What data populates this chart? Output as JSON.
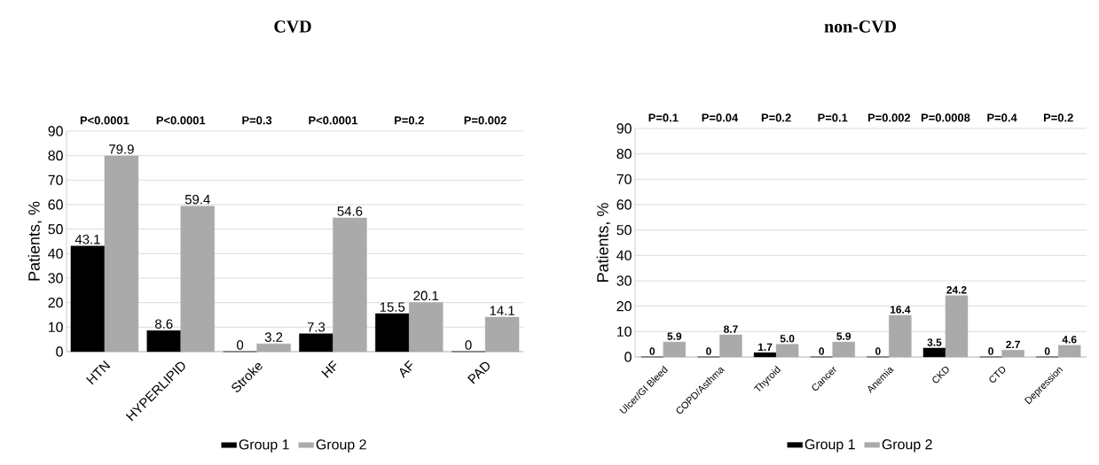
{
  "chart_data": [
    {
      "type": "bar",
      "title": "CVD",
      "ylabel": "Patients, %",
      "categories": [
        "HTN",
        "HYPERLIPID",
        "Stroke",
        "HF",
        "AF",
        "PAD"
      ],
      "series": [
        {
          "name": "Group 1",
          "color": "#000000",
          "values": [
            43.1,
            8.6,
            0,
            7.3,
            15.5,
            0
          ],
          "value_labels": [
            "43.1",
            "8.6",
            "0",
            "7.3",
            "15.5",
            "0"
          ]
        },
        {
          "name": "Group 2",
          "color": "#aaaaaa",
          "values": [
            79.9,
            59.4,
            3.2,
            54.6,
            20.1,
            14.1
          ],
          "value_labels": [
            "79.9",
            "59.4",
            "3.2",
            "54.6",
            "20.1",
            "14.1"
          ]
        }
      ],
      "ylim": [
        0,
        90
      ],
      "yticks": [
        0,
        10,
        20,
        30,
        40,
        50,
        60,
        70,
        80,
        90
      ],
      "grid": "y",
      "legend": "bottom",
      "annotations": [
        "P<0.0001",
        "P<0.0001",
        "P=0.3",
        "P<0.0001",
        "P=0.2",
        "P=0.002"
      ]
    },
    {
      "type": "bar",
      "title": "non-CVD",
      "ylabel": "Patients, %",
      "categories": [
        "Ulcer/GI Bleed",
        "COPD/Asthma",
        "Thyroid",
        "Cancer",
        "Anemia",
        "CKD",
        "CTD",
        "Depression"
      ],
      "series": [
        {
          "name": "Group 1",
          "color": "#000000",
          "values": [
            0,
            0,
            1.7,
            0,
            0,
            3.5,
            0,
            0
          ],
          "value_labels": [
            "0",
            "0",
            "1.7",
            "0",
            "0",
            "3.5",
            "0",
            "0"
          ]
        },
        {
          "name": "Group 2",
          "color": "#aaaaaa",
          "values": [
            5.9,
            8.7,
            5.0,
            5.9,
            16.4,
            24.2,
            2.7,
            4.6
          ],
          "value_labels": [
            "5.9",
            "8.7",
            "5.0",
            "5.9",
            "16.4",
            "24.2",
            "2.7",
            "4.6"
          ]
        }
      ],
      "ylim": [
        0,
        90
      ],
      "yticks": [
        0,
        10,
        20,
        30,
        40,
        50,
        60,
        70,
        80,
        90
      ],
      "grid": "y",
      "legend": "bottom",
      "annotations": [
        "P=0.1",
        "P=0.04",
        "P=0.2",
        "P=0.1",
        "P=0.002",
        "P=0.0008",
        "P=0.4",
        "P=0.2"
      ]
    }
  ]
}
